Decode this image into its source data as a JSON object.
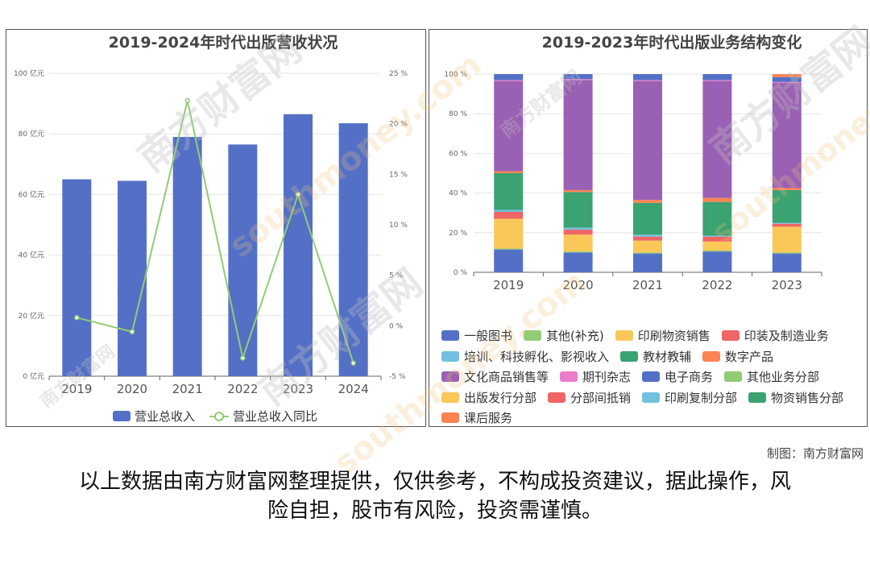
{
  "credit": "制图：南方财富网",
  "disclaimer": {
    "line1": "以上数据由南方财富网整理提供，仅供参考，不构成投资建议，据此操作，风",
    "line2": "险自担，股市有风险，投资需谨慎。"
  },
  "watermark": {
    "brand": "南方财富网",
    "site": "southmoney.com"
  },
  "colors": {
    "bar": "#5470c6",
    "line": "#91cc75",
    "segments": [
      "#5470c6",
      "#91cc75",
      "#fac858",
      "#ee6666",
      "#73c0de",
      "#3ba272",
      "#fc8452",
      "#9a60b4",
      "#ea7ccc",
      "#5470c6",
      "#91cc75",
      "#fac858",
      "#ee6666",
      "#73c0de",
      "#3ba272",
      "#fc8452"
    ]
  },
  "chart_data": [
    {
      "type": "bar",
      "title": "2019-2024年时代出版营收状况",
      "categories": [
        "2019",
        "2020",
        "2021",
        "2022",
        "2023",
        "2024"
      ],
      "series": [
        {
          "name": "营业总收入",
          "type": "bar",
          "values": [
            65.0,
            64.5,
            79.0,
            76.5,
            86.5,
            83.5
          ]
        },
        {
          "name": "营业总收入同比",
          "type": "line",
          "values": [
            0.8,
            -0.6,
            22.3,
            -3.2,
            13.0,
            -3.7
          ]
        }
      ],
      "ylim_left": [
        0,
        100
      ],
      "yticks_left": [
        "0 亿元",
        "20 亿元",
        "40 亿元",
        "60 亿元",
        "80 亿元",
        "100 亿元"
      ],
      "ylim_right": [
        -5,
        25
      ],
      "yticks_right": [
        "-5 %",
        "0 %",
        "5 %",
        "10 %",
        "15 %",
        "20 %",
        "25 %"
      ],
      "legend": "bottom",
      "grid": true
    },
    {
      "type": "bar",
      "stacked": true,
      "title": "2019-2023年时代出版业务结构变化",
      "categories": [
        "2019",
        "2020",
        "2021",
        "2022",
        "2023"
      ],
      "ylim": [
        0,
        100
      ],
      "yticks": [
        "0 %",
        "20 %",
        "40 %",
        "60 %",
        "80 %",
        "100 %"
      ],
      "series": [
        {
          "name": "一般图书",
          "values": [
            11.5,
            10.0,
            9.5,
            10.5,
            9.5
          ]
        },
        {
          "name": "其他(补充)",
          "values": [
            0.5,
            0.5,
            0.5,
            0.5,
            0.5
          ]
        },
        {
          "name": "印刷物资销售",
          "values": [
            15.0,
            8.5,
            6.0,
            4.5,
            13.0
          ]
        },
        {
          "name": "印装及制造业务",
          "values": [
            3.5,
            2.5,
            2.0,
            2.5,
            1.5
          ]
        },
        {
          "name": "培训、科技孵化、影视收入",
          "values": [
            1.0,
            1.0,
            1.0,
            0.5,
            0.5
          ]
        },
        {
          "name": "教材教辅",
          "values": [
            18.5,
            18.0,
            16.0,
            17.0,
            16.5
          ]
        },
        {
          "name": "数字产品",
          "values": [
            1.0,
            1.0,
            1.5,
            2.0,
            1.0
          ]
        },
        {
          "name": "文化商品销售等",
          "values": [
            45.5,
            55.5,
            60.0,
            59.0,
            53.0
          ]
        },
        {
          "name": "期刊杂志",
          "values": [
            0.5,
            0.5,
            0.5,
            0.5,
            0.5
          ]
        },
        {
          "name": "电子商务",
          "values": [
            3.0,
            2.5,
            3.0,
            3.0,
            2.5
          ]
        },
        {
          "name": "其他业务分部",
          "values": [
            0,
            0,
            0,
            0,
            0
          ]
        },
        {
          "name": "出版发行分部",
          "values": [
            0,
            0,
            0,
            0,
            0
          ]
        },
        {
          "name": "分部间抵销",
          "values": [
            0,
            0,
            0,
            0,
            0
          ]
        },
        {
          "name": "印刷复制分部",
          "values": [
            0,
            0,
            0,
            0,
            0
          ]
        },
        {
          "name": "物资销售分部",
          "values": [
            0,
            0,
            0,
            0,
            0
          ]
        },
        {
          "name": "课后服务",
          "values": [
            0,
            0,
            0,
            0,
            1.5
          ]
        }
      ],
      "legend": "bottom",
      "grid": true
    }
  ]
}
